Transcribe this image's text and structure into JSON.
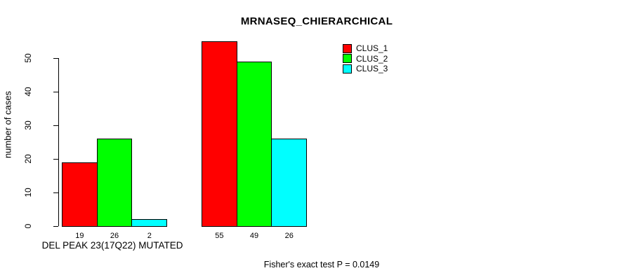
{
  "chart_data": {
    "type": "bar",
    "title": "MRNASEQ_CHIERARCHICAL",
    "ylabel": "number of cases",
    "xlabel": "",
    "categories": [
      "DEL PEAK 23(17Q22) MUTATED",
      ""
    ],
    "series": [
      {
        "name": "CLUS_1",
        "color": "#ff0000",
        "values": [
          19,
          55
        ]
      },
      {
        "name": "CLUS_2",
        "color": "#00ff00",
        "values": [
          26,
          49
        ]
      },
      {
        "name": "CLUS_3",
        "color": "#00ffff",
        "values": [
          2,
          26
        ]
      }
    ],
    "yticks": [
      0,
      10,
      20,
      30,
      40,
      50
    ],
    "ylim": [
      0,
      55
    ],
    "grid": false,
    "legend_position": "top-right",
    "bar_value_labels": [
      [
        19,
        26,
        2
      ],
      [
        55,
        49,
        26
      ]
    ]
  },
  "footer": {
    "text": "Fisher's exact test P = 0.0149"
  }
}
